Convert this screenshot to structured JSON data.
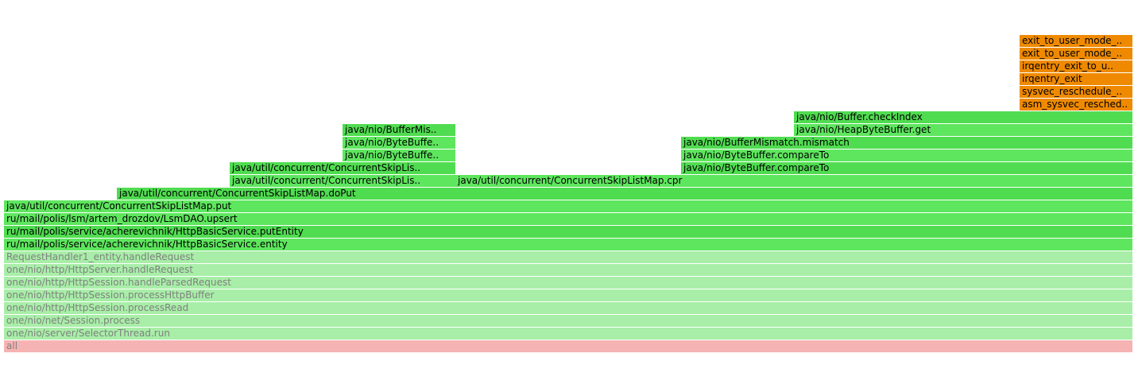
{
  "chart_data": {
    "type": "flame",
    "total_width_units": 1000,
    "colors": {
      "native": "#ef8a00",
      "java": "#5ee65e",
      "java_alt": "#50dc50",
      "interpreted": "#a8eea8",
      "root": "#f6b3b3"
    },
    "frames": [
      {
        "label": "all",
        "depth": 0,
        "start": 0,
        "width": 1000,
        "kind": "root"
      },
      {
        "label": "one/nio/server/SelectorThread.run",
        "depth": 1,
        "start": 0,
        "width": 1000,
        "kind": "interpreted"
      },
      {
        "label": "one/nio/net/Session.process",
        "depth": 2,
        "start": 0,
        "width": 1000,
        "kind": "interpreted"
      },
      {
        "label": "one/nio/http/HttpSession.processRead",
        "depth": 3,
        "start": 0,
        "width": 1000,
        "kind": "interpreted"
      },
      {
        "label": "one/nio/http/HttpSession.processHttpBuffer",
        "depth": 4,
        "start": 0,
        "width": 1000,
        "kind": "interpreted"
      },
      {
        "label": "one/nio/http/HttpSession.handleParsedRequest",
        "depth": 5,
        "start": 0,
        "width": 1000,
        "kind": "interpreted"
      },
      {
        "label": "one/nio/http/HttpServer.handleRequest",
        "depth": 6,
        "start": 0,
        "width": 1000,
        "kind": "interpreted"
      },
      {
        "label": "RequestHandler1_entity.handleRequest",
        "depth": 7,
        "start": 0,
        "width": 1000,
        "kind": "interpreted"
      },
      {
        "label": "ru/mail/polis/service/acherevichnik/HttpBasicService.entity",
        "depth": 8,
        "start": 0,
        "width": 1000,
        "kind": "java"
      },
      {
        "label": "ru/mail/polis/service/acherevichnik/HttpBasicService.putEntity",
        "depth": 9,
        "start": 0,
        "width": 1000,
        "kind": "java_alt"
      },
      {
        "label": "ru/mail/polis/lsm/artem_drozdov/LsmDAO.upsert",
        "depth": 10,
        "start": 0,
        "width": 1000,
        "kind": "java"
      },
      {
        "label": "java/util/concurrent/ConcurrentSkipListMap.put",
        "depth": 11,
        "start": 0,
        "width": 1000,
        "kind": "java"
      },
      {
        "label": "java/util/concurrent/ConcurrentSkipListMap.doPut",
        "depth": 12,
        "start": 100,
        "width": 900,
        "kind": "java_alt"
      },
      {
        "label": "java/util/concurrent/ConcurrentSkipLis..",
        "depth": 13,
        "start": 200,
        "width": 200,
        "kind": "java"
      },
      {
        "label": "java/util/concurrent/ConcurrentSkipListMap.cpr",
        "depth": 13,
        "start": 400,
        "width": 600,
        "kind": "java"
      },
      {
        "label": "java/util/concurrent/ConcurrentSkipLis..",
        "depth": 14,
        "start": 200,
        "width": 200,
        "kind": "java_alt"
      },
      {
        "label": "java/nio/ByteBuffer.compareTo",
        "depth": 14,
        "start": 600,
        "width": 400,
        "kind": "java_alt"
      },
      {
        "label": "java/nio/ByteBuffe..",
        "depth": 15,
        "start": 300,
        "width": 100,
        "kind": "java"
      },
      {
        "label": "java/nio/ByteBuffer.compareTo",
        "depth": 15,
        "start": 600,
        "width": 400,
        "kind": "java"
      },
      {
        "label": "java/nio/ByteBuffe..",
        "depth": 16,
        "start": 300,
        "width": 100,
        "kind": "java"
      },
      {
        "label": "java/nio/BufferMismatch.mismatch",
        "depth": 16,
        "start": 600,
        "width": 400,
        "kind": "java_alt"
      },
      {
        "label": "java/nio/BufferMis..",
        "depth": 17,
        "start": 300,
        "width": 100,
        "kind": "java_alt"
      },
      {
        "label": "java/nio/HeapByteBuffer.get",
        "depth": 17,
        "start": 700,
        "width": 300,
        "kind": "java"
      },
      {
        "label": "java/nio/Buffer.checkIndex",
        "depth": 18,
        "start": 700,
        "width": 300,
        "kind": "java_alt"
      },
      {
        "label": "asm_sysvec_resched..",
        "depth": 19,
        "start": 900,
        "width": 100,
        "kind": "native"
      },
      {
        "label": "sysvec_reschedule_..",
        "depth": 20,
        "start": 900,
        "width": 100,
        "kind": "native"
      },
      {
        "label": "irqentry_exit",
        "depth": 21,
        "start": 900,
        "width": 100,
        "kind": "native"
      },
      {
        "label": "irqentry_exit_to_u..",
        "depth": 22,
        "start": 900,
        "width": 100,
        "kind": "native"
      },
      {
        "label": "exit_to_user_mode_..",
        "depth": 23,
        "start": 900,
        "width": 100,
        "kind": "native"
      },
      {
        "label": "exit_to_user_mode_..",
        "depth": 24,
        "start": 900,
        "width": 100,
        "kind": "native"
      }
    ]
  }
}
